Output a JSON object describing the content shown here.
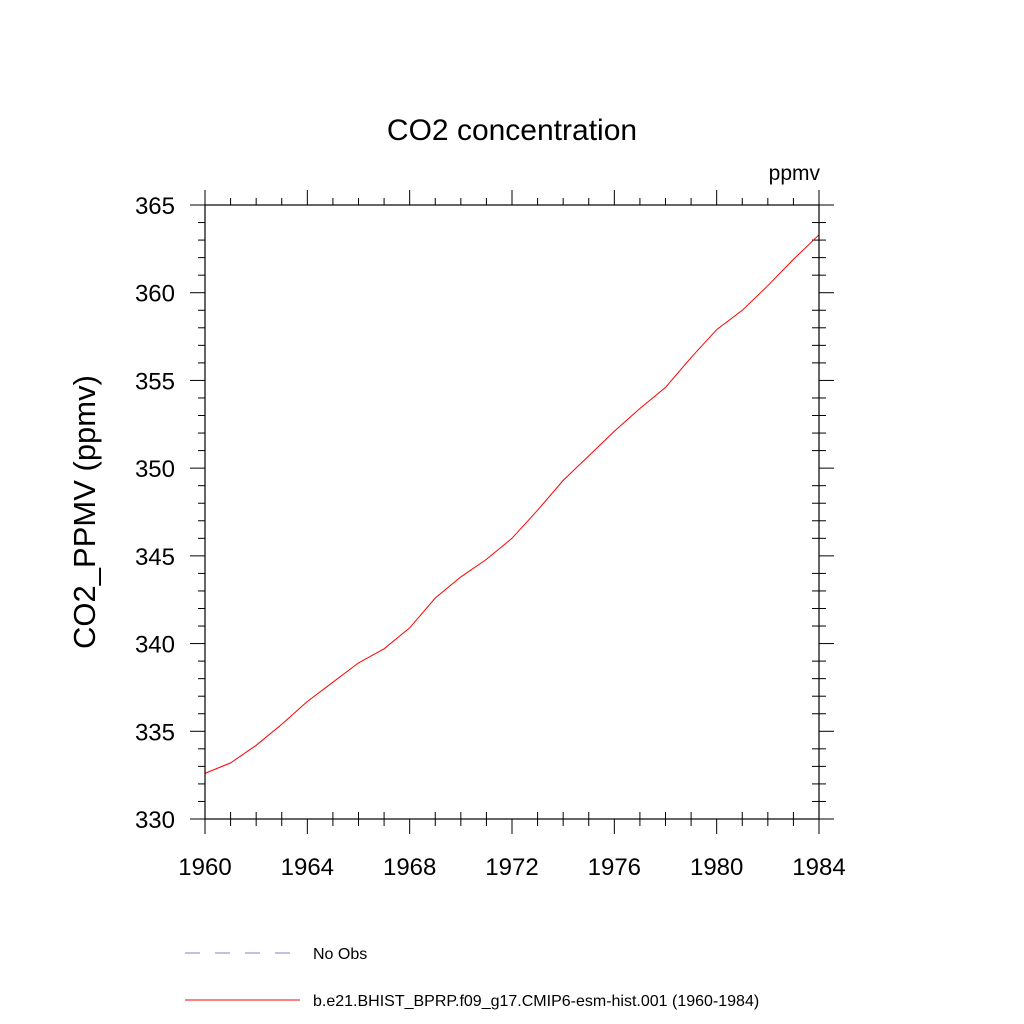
{
  "chart_data": {
    "type": "line",
    "title": "CO2 concentration",
    "units": "ppmv",
    "xlabel": "",
    "ylabel": "CO2_PPMV  (ppmv)",
    "xlim": [
      1960,
      1984
    ],
    "ylim": [
      330,
      365
    ],
    "x_ticks": [
      1960,
      1964,
      1968,
      1972,
      1976,
      1980,
      1984
    ],
    "x_tick_labels": [
      "1960",
      "1964",
      "1968",
      "1972",
      "1976",
      "1980",
      "1984"
    ],
    "y_ticks": [
      330,
      335,
      340,
      345,
      350,
      355,
      360,
      365
    ],
    "y_tick_labels": [
      "330",
      "335",
      "340",
      "345",
      "350",
      "355",
      "360",
      "365"
    ],
    "grid": false,
    "legend_position": "bottom",
    "series": [
      {
        "name": "b.e21.BHIST_BPRP.f09_g17.CMIP6-esm-hist.001 (1960-1984)",
        "color": "#ff0000",
        "style": "solid",
        "x": [
          1960,
          1961,
          1962,
          1963,
          1964,
          1965,
          1966,
          1967,
          1968,
          1969,
          1970,
          1971,
          1972,
          1973,
          1974,
          1975,
          1976,
          1977,
          1978,
          1979,
          1980,
          1981,
          1982,
          1983,
          1984
        ],
        "y": [
          332.6,
          333.2,
          334.2,
          335.4,
          336.7,
          337.8,
          338.9,
          339.7,
          340.9,
          342.6,
          343.8,
          344.8,
          346.0,
          347.6,
          349.3,
          350.7,
          352.1,
          353.4,
          354.6,
          356.3,
          357.9,
          359.0,
          360.4,
          361.9,
          363.3
        ]
      }
    ],
    "legend": [
      {
        "label": "No Obs",
        "color": "#8080c8",
        "style": "dashed"
      },
      {
        "label": "b.e21.BHIST_BPRP.f09_g17.CMIP6-esm-hist.001 (1960-1984)",
        "color": "#ff0000",
        "style": "solid"
      }
    ]
  }
}
